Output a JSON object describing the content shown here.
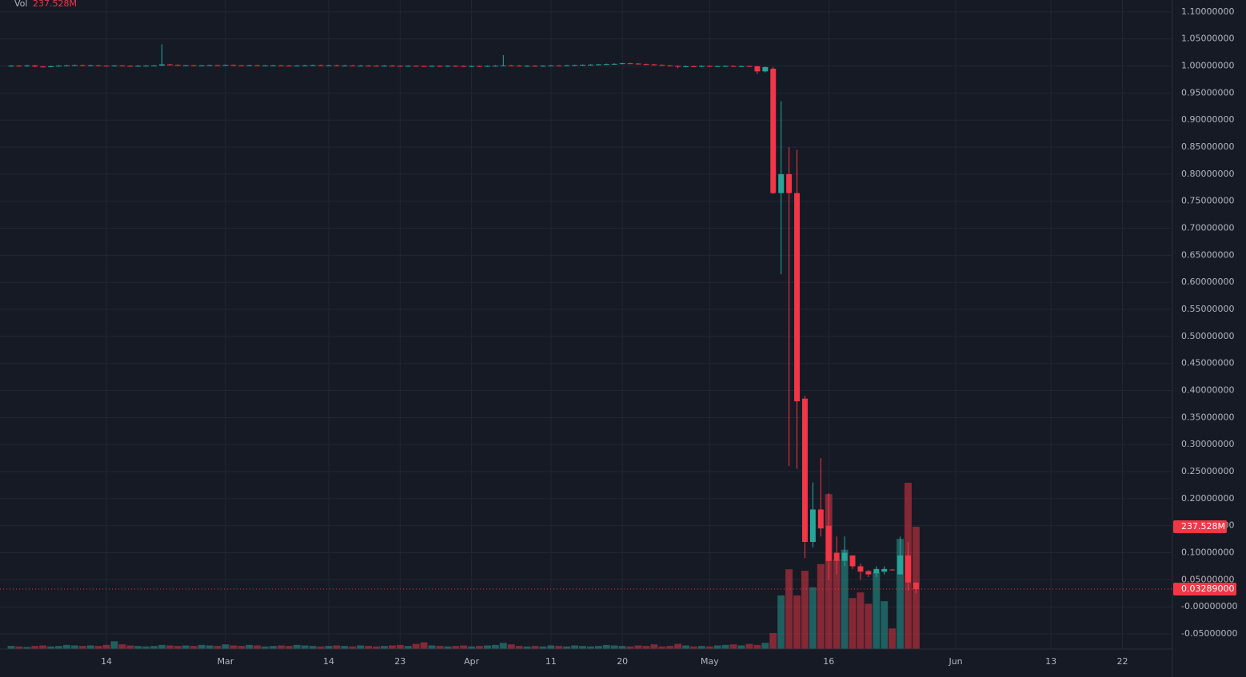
{
  "chart_data": {
    "type": "candlestick",
    "volume_title": "Vol",
    "volume_last_label": "237.528M",
    "last_price_label": "0.03289000",
    "up_color": "#26a69a",
    "down_color": "#f23645",
    "volume_up_color": "rgba(38,166,154,0.5)",
    "volume_down_color": "rgba(242,54,69,0.5)",
    "grid": true,
    "xlim": [
      -0.4,
      146.3
    ],
    "xticks": [
      {
        "value": 12,
        "label": "14"
      },
      {
        "value": 27,
        "label": "Mar"
      },
      {
        "value": 40,
        "label": "14"
      },
      {
        "value": 49,
        "label": "23"
      },
      {
        "value": 58,
        "label": "Apr"
      },
      {
        "value": 68,
        "label": "11"
      },
      {
        "value": 77,
        "label": "20"
      },
      {
        "value": 88,
        "label": "May"
      },
      {
        "value": 103,
        "label": "16"
      },
      {
        "value": 119,
        "label": "Jun"
      },
      {
        "value": 131,
        "label": "13"
      },
      {
        "value": 140,
        "label": "22"
      }
    ],
    "ylim": [
      -0.078,
      1.122
    ],
    "yticks": [
      {
        "value": 1.1,
        "label": "1.10000000"
      },
      {
        "value": 1.05,
        "label": "1.05000000"
      },
      {
        "value": 1.0,
        "label": "1.00000000"
      },
      {
        "value": 0.95,
        "label": "0.95000000"
      },
      {
        "value": 0.9,
        "label": "0.90000000"
      },
      {
        "value": 0.85,
        "label": "0.85000000"
      },
      {
        "value": 0.8,
        "label": "0.80000000"
      },
      {
        "value": 0.75,
        "label": "0.75000000"
      },
      {
        "value": 0.7,
        "label": "0.70000000"
      },
      {
        "value": 0.65,
        "label": "0.65000000"
      },
      {
        "value": 0.6,
        "label": "0.60000000"
      },
      {
        "value": 0.55,
        "label": "0.55000000"
      },
      {
        "value": 0.5,
        "label": "0.50000000"
      },
      {
        "value": 0.45,
        "label": "0.45000000"
      },
      {
        "value": 0.4,
        "label": "0.40000000"
      },
      {
        "value": 0.35,
        "label": "0.35000000"
      },
      {
        "value": 0.3,
        "label": "0.30000000"
      },
      {
        "value": 0.25,
        "label": "0.25000000"
      },
      {
        "value": 0.2,
        "label": "0.20000000"
      },
      {
        "value": 0.15,
        "label": "0.15000000"
      },
      {
        "value": 0.1,
        "label": "0.10000000"
      },
      {
        "value": 0.05,
        "label": "0.05000000"
      },
      {
        "value": 0,
        "label": "-0.00000000"
      },
      {
        "value": -0.05,
        "label": "-0.05000000"
      }
    ],
    "volume_ylim": [
      0,
      1261
    ],
    "open": [
      0.9998,
      1.0005,
      0.9995,
      1.001,
      0.999,
      0.9985,
      0.9995,
      1.0005,
      1.001,
      1.0015,
      1.0008,
      1.0012,
      1.0005,
      1.0,
      1.0008,
      1.0002,
      0.9998,
      1.0003,
      1.0006,
      1.0009,
      1.003,
      1.002,
      1.001,
      1.0012,
      1.0008,
      1.001,
      1.0015,
      1.0012,
      1.0018,
      1.001,
      1.0008,
      1.0012,
      1.0005,
      1.0009,
      1.001,
      1.0006,
      1.0003,
      1.0007,
      1.001,
      1.0015,
      1.0008,
      1.0012,
      1.0005,
      1.0008,
      1.0003,
      1.0006,
      1.0004,
      1.0001,
      1.0005,
      1.0002,
      0.9998,
      1.0003,
      0.9999,
      0.9996,
      1.0001,
      0.9998,
      1.0002,
      0.9999,
      0.9995,
      0.9999,
      0.9996,
      1.0,
      1.0004,
      1.001,
      1.0006,
      0.9998,
      1.0003,
      1.0,
      1.0004,
      1.0008,
      1.0004,
      1.001,
      1.0015,
      1.002,
      1.0025,
      1.003,
      1.0035,
      1.004,
      1.005,
      1.0045,
      1.0035,
      1.003,
      1.002,
      1.001,
      1.0,
      0.9985,
      0.9995,
      0.999,
      1.0,
      0.9995,
      0.9998,
      1.0,
      0.9995,
      0.9998,
      0.9995,
      0.99,
      0.995,
      0.765,
      0.8,
      0.765,
      0.385,
      0.12,
      0.18,
      0.15,
      0.1,
      0.085,
      0.095,
      0.075,
      0.066,
      0.062,
      0.065,
      0.069,
      0.06,
      0.095,
      0.045
    ],
    "high": [
      1.0015,
      1.0015,
      1.002,
      1.002,
      1.0,
      1.0005,
      1.0015,
      1.002,
      1.0025,
      1.0025,
      1.0022,
      1.0022,
      1.0015,
      1.0018,
      1.0018,
      1.0012,
      1.0013,
      1.0016,
      1.0019,
      1.04,
      1.004,
      1.003,
      1.0022,
      1.0022,
      1.002,
      1.0025,
      1.0025,
      1.0028,
      1.0028,
      1.002,
      1.0022,
      1.0022,
      1.0019,
      1.002,
      1.002,
      1.0016,
      1.0017,
      1.002,
      1.0025,
      1.0025,
      1.0022,
      1.0022,
      1.0018,
      1.0018,
      1.0016,
      1.0016,
      1.0014,
      1.0015,
      1.0015,
      1.0012,
      1.0013,
      1.0013,
      1.0009,
      1.0011,
      1.0011,
      1.0012,
      1.0012,
      1.0009,
      1.0009,
      1.0009,
      1.001,
      1.0014,
      1.02,
      1.002,
      1.0016,
      1.0013,
      1.0013,
      1.0014,
      1.0018,
      1.0018,
      1.002,
      1.0025,
      1.003,
      1.0035,
      1.004,
      1.0045,
      1.005,
      1.006,
      1.006,
      1.0055,
      1.0045,
      1.004,
      1.003,
      1.002,
      1.001,
      1.0005,
      1.0005,
      1.001,
      1.001,
      1.0008,
      1.001,
      1.001,
      1.0008,
      1.0008,
      1.0,
      0.999,
      0.998,
      0.935,
      0.85,
      0.845,
      0.39,
      0.23,
      0.275,
      0.21,
      0.13,
      0.13,
      0.095,
      0.08,
      0.068,
      0.075,
      0.075,
      0.07,
      0.13,
      0.12,
      0.045
    ],
    "low": [
      0.9988,
      0.9985,
      0.9985,
      0.998,
      0.9975,
      0.9975,
      0.9985,
      0.9995,
      1.0,
      0.9998,
      0.9998,
      0.9995,
      0.999,
      0.999,
      0.9992,
      0.9988,
      0.9988,
      0.9993,
      0.9996,
      0.9999,
      1.001,
      1.0,
      1.0,
      0.9998,
      0.9998,
      1.0,
      1.0002,
      1.0002,
      1.0,
      0.9998,
      0.9998,
      0.9995,
      0.9995,
      0.9999,
      0.9996,
      0.9993,
      0.9993,
      0.9997,
      1.0,
      0.9998,
      0.9998,
      0.9995,
      0.9995,
      0.9993,
      0.9993,
      0.9994,
      0.9991,
      0.9991,
      0.9992,
      0.9988,
      0.9988,
      0.9989,
      0.9986,
      0.9986,
      0.9988,
      0.9988,
      0.9989,
      0.9985,
      0.9985,
      0.9986,
      0.9986,
      0.999,
      0.9994,
      0.9996,
      0.9988,
      0.9988,
      0.999,
      0.999,
      0.9994,
      0.9994,
      0.9994,
      1.0,
      1.0005,
      1.001,
      1.0015,
      1.002,
      1.0025,
      1.003,
      1.0035,
      1.0025,
      1.002,
      1.001,
      1.0,
      0.999,
      0.996,
      0.9975,
      0.998,
      0.998,
      0.9985,
      0.9985,
      0.9988,
      0.9985,
      0.9985,
      0.9985,
      0.985,
      0.988,
      0.763,
      0.615,
      0.26,
      0.255,
      0.09,
      0.11,
      0.13,
      0.05,
      0.06,
      0.075,
      0.07,
      0.05,
      0.055,
      0.055,
      0.06,
      0.067,
      0.06,
      0.03,
      0.025
    ],
    "close": [
      1.0005,
      0.9995,
      1.001,
      0.999,
      0.9985,
      0.9995,
      1.0005,
      1.001,
      1.0015,
      1.0008,
      1.0012,
      1.0005,
      1.0,
      1.0008,
      1.0002,
      0.9998,
      1.0003,
      1.0006,
      1.0009,
      1.003,
      1.002,
      1.001,
      1.0012,
      1.0008,
      1.001,
      1.0015,
      1.0012,
      1.0018,
      1.001,
      1.0008,
      1.0012,
      1.0005,
      1.0009,
      1.001,
      1.0006,
      1.0003,
      1.0007,
      1.001,
      1.0015,
      1.0008,
      1.0012,
      1.0005,
      1.0008,
      1.0003,
      1.0006,
      1.0004,
      1.0001,
      1.0005,
      1.0002,
      0.9998,
      1.0003,
      0.9999,
      0.9996,
      1.0001,
      0.9998,
      1.0002,
      0.9999,
      0.9995,
      0.9999,
      0.9996,
      1.0,
      1.0004,
      1.001,
      1.0006,
      0.9998,
      1.0003,
      1.0,
      1.0004,
      1.0008,
      1.0004,
      1.001,
      1.0015,
      1.002,
      1.0025,
      1.003,
      1.0035,
      1.004,
      1.005,
      1.0045,
      1.0035,
      1.003,
      1.002,
      1.001,
      1.0,
      0.9985,
      0.9995,
      0.999,
      1.0,
      0.9995,
      0.9998,
      1.0,
      0.9995,
      0.9998,
      0.9995,
      0.99,
      0.998,
      0.765,
      0.8,
      0.765,
      0.38,
      0.12,
      0.18,
      0.145,
      0.085,
      0.085,
      0.1,
      0.075,
      0.065,
      0.06,
      0.07,
      0.07,
      0.0685,
      0.095,
      0.045,
      0.03289
    ],
    "volume": [
      6,
      5,
      4,
      6,
      7,
      5,
      6,
      8,
      7,
      6,
      7,
      6,
      8,
      15,
      9,
      7,
      6,
      5,
      6,
      8,
      7,
      6,
      7,
      6,
      8,
      7,
      6,
      9,
      7,
      6,
      8,
      7,
      5,
      6,
      7,
      6,
      8,
      7,
      6,
      5,
      6,
      7,
      6,
      5,
      7,
      6,
      5,
      6,
      7,
      8,
      6,
      10,
      13,
      7,
      6,
      5,
      6,
      7,
      5,
      6,
      7,
      8,
      12,
      9,
      6,
      5,
      6,
      5,
      7,
      6,
      5,
      7,
      6,
      5,
      6,
      8,
      7,
      6,
      5,
      7,
      6,
      9,
      5,
      6,
      10,
      7,
      5,
      6,
      5,
      7,
      8,
      9,
      7,
      10,
      8,
      12,
      31,
      104,
      155,
      104,
      152,
      120,
      165,
      301,
      174,
      193,
      99,
      110,
      88,
      149,
      93,
      40,
      214,
      323,
      237.528
    ]
  }
}
